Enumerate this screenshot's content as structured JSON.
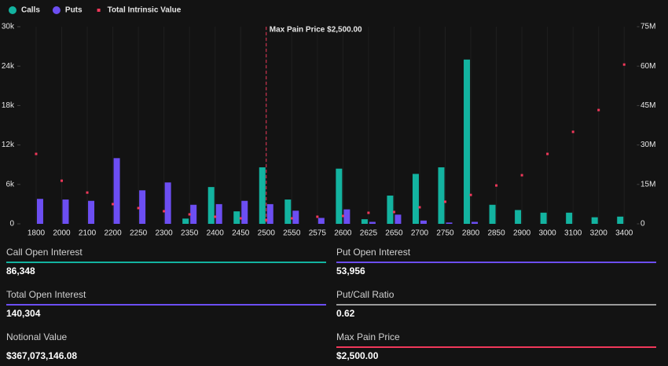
{
  "chart_data": {
    "type": "bar",
    "categories": [
      "1800",
      "2000",
      "2100",
      "2200",
      "2250",
      "2300",
      "2350",
      "2400",
      "2450",
      "2500",
      "2550",
      "2575",
      "2600",
      "2625",
      "2650",
      "2700",
      "2750",
      "2800",
      "2850",
      "2900",
      "3000",
      "3100",
      "3200",
      "3400"
    ],
    "series": [
      {
        "name": "Calls",
        "color": "#13b3a0",
        "values": [
          0,
          0,
          0,
          0,
          0,
          0,
          800,
          5600,
          1900,
          8600,
          3700,
          0,
          8400,
          700,
          4300,
          7600,
          8600,
          25000,
          2900,
          2100,
          1700,
          1700,
          1000,
          1100
        ]
      },
      {
        "name": "Puts",
        "color": "#6c4ef2",
        "values": [
          3800,
          3700,
          3500,
          10000,
          5100,
          6300,
          2900,
          3000,
          3500,
          3000,
          2000,
          900,
          2200,
          300,
          1400,
          500,
          200,
          300,
          0,
          0,
          0,
          0,
          0,
          0
        ]
      },
      {
        "name": "Total Intrinsic Value",
        "type": "scatter",
        "axis": "y2",
        "color": "#f0385a",
        "values": [
          26600000,
          16400000,
          11900000,
          7500000,
          6000000,
          4800000,
          3600000,
          2700000,
          2100000,
          1500000,
          2100000,
          2700000,
          3000000,
          4200000,
          4500000,
          6300000,
          8400000,
          11000000,
          14600000,
          18500000,
          26600000,
          35000000,
          43300000,
          60600000
        ]
      }
    ],
    "ylim": [
      0,
      30000
    ],
    "yticks": [
      0,
      {
        "value": 6000,
        "label": "6k"
      },
      {
        "value": 12000,
        "label": "12k"
      },
      {
        "value": 18000,
        "label": "18k"
      },
      {
        "value": 24000,
        "label": "24k"
      },
      {
        "value": 30000,
        "label": "30k"
      }
    ],
    "y2lim": [
      0,
      75000000
    ],
    "y2ticks": [
      0,
      {
        "value": 15000000,
        "label": "15M"
      },
      {
        "value": 30000000,
        "label": "30M"
      },
      {
        "value": 45000000,
        "label": "45M"
      },
      {
        "value": 60000000,
        "label": "60M"
      },
      {
        "value": 75000000,
        "label": "75M"
      }
    ],
    "y2color": "#f0385a",
    "legend": "top-left",
    "annotation": {
      "text": "Max Pain Price $2,500.00",
      "x": "2500",
      "color": "#f0385a"
    }
  },
  "stats": [
    {
      "label": "Call Open Interest",
      "value": "86,348",
      "color": "#13b3a0"
    },
    {
      "label": "Put Open Interest",
      "value": "53,956",
      "color": "#6c4ef2"
    },
    {
      "label": "Total Open Interest",
      "value": "140,304",
      "color": "#6c4ef2"
    },
    {
      "label": "Put/Call Ratio",
      "value": "0.62",
      "color": "#9a9a9a"
    },
    {
      "label": "Notional Value",
      "value": "$367,073,146.08"
    },
    {
      "label": "Max Pain Price",
      "value": "$2,500.00",
      "color": "#f0385a"
    }
  ]
}
